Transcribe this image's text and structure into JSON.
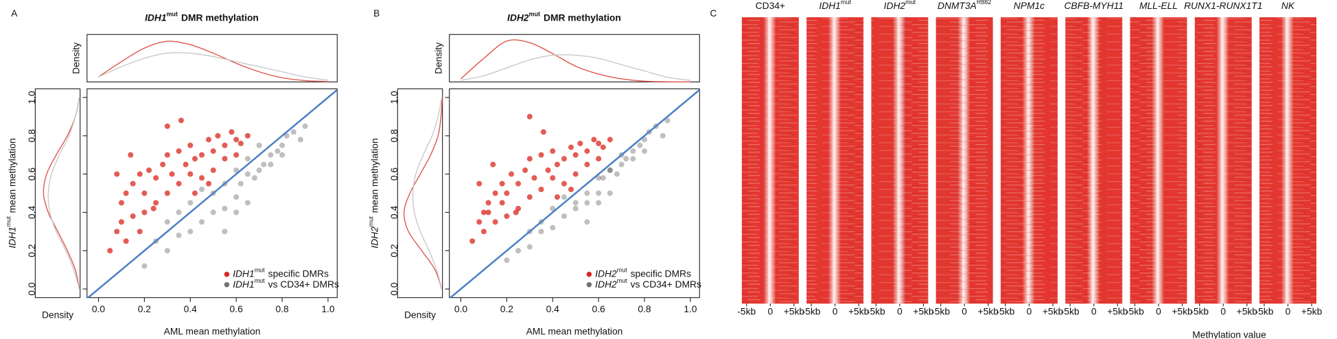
{
  "chart_data": [
    {
      "type": "scatter",
      "panel": "A",
      "title": {
        "italic": "IDH1",
        "sup": "mut",
        "text": "DMR methylation"
      },
      "xlabel": "AML mean methylation",
      "ylabel": {
        "italic": "IDH1",
        "sup": "mut",
        "text": "mean methylation"
      },
      "density_label": "Density",
      "xlim": [
        -0.05,
        1.04
      ],
      "ylim": [
        -0.045,
        1.045
      ],
      "xticks": [
        {
          "value": 0,
          "label": "0.0"
        },
        0.2,
        0.4,
        0.6,
        0.8,
        {
          "value": 1,
          "label": "1.0"
        }
      ],
      "yticks": [
        {
          "value": 0,
          "label": "0.0"
        },
        0.2,
        0.4,
        0.6,
        0.8,
        {
          "value": 1,
          "label": "1.0"
        }
      ],
      "diagonal_color": "#4a80c4",
      "legend": "bottom-right",
      "series": [
        {
          "name": {
            "italic": "IDH1",
            "sup": "mut",
            "text": "specific DMRs"
          },
          "color": "#d9261c",
          "opacity": 0.75,
          "x": [
            0.08,
            0.1,
            0.12,
            0.15,
            0.18,
            0.2,
            0.22,
            0.25,
            0.28,
            0.3,
            0.32,
            0.35,
            0.38,
            0.4,
            0.42,
            0.45,
            0.48,
            0.5,
            0.52,
            0.55,
            0.58,
            0.6,
            0.62,
            0.65,
            0.1,
            0.15,
            0.2,
            0.25,
            0.3,
            0.35,
            0.4,
            0.45,
            0.5,
            0.55,
            0.6,
            0.12,
            0.18,
            0.24,
            0.3,
            0.36,
            0.42,
            0.48,
            0.05,
            0.08,
            0.14
          ],
          "values": [
            0.3,
            0.45,
            0.5,
            0.55,
            0.6,
            0.5,
            0.62,
            0.58,
            0.65,
            0.7,
            0.6,
            0.72,
            0.65,
            0.75,
            0.68,
            0.7,
            0.78,
            0.72,
            0.8,
            0.75,
            0.82,
            0.78,
            0.76,
            0.8,
            0.35,
            0.38,
            0.4,
            0.45,
            0.5,
            0.55,
            0.6,
            0.58,
            0.62,
            0.68,
            0.7,
            0.25,
            0.3,
            0.42,
            0.85,
            0.88,
            0.5,
            0.55,
            0.2,
            0.6,
            0.7
          ]
        },
        {
          "name": {
            "italic": "IDH1",
            "sup": "mut",
            "text": "vs CD34+ DMRs"
          },
          "color": "#000000",
          "opacity": 0.25,
          "x": [
            0.2,
            0.3,
            0.35,
            0.4,
            0.45,
            0.5,
            0.55,
            0.6,
            0.62,
            0.65,
            0.68,
            0.7,
            0.72,
            0.75,
            0.78,
            0.8,
            0.82,
            0.85,
            0.88,
            0.9,
            0.5,
            0.55,
            0.6,
            0.65,
            0.7,
            0.75,
            0.8,
            0.3,
            0.35,
            0.4,
            0.45,
            0.25,
            0.55,
            0.6,
            0.65
          ],
          "values": [
            0.12,
            0.2,
            0.28,
            0.3,
            0.35,
            0.4,
            0.42,
            0.48,
            0.55,
            0.6,
            0.58,
            0.62,
            0.65,
            0.7,
            0.72,
            0.75,
            0.8,
            0.82,
            0.78,
            0.85,
            0.5,
            0.55,
            0.62,
            0.68,
            0.75,
            0.65,
            0.7,
            0.35,
            0.4,
            0.45,
            0.52,
            0.25,
            0.3,
            0.4,
            0.45
          ]
        }
      ],
      "density_x": {
        "grid": [
          0,
          0.1,
          0.2,
          0.3,
          0.4,
          0.5,
          0.6,
          0.7,
          0.8,
          0.9,
          1.0
        ],
        "lim": [
          0,
          2.6
        ],
        "series": [
          {
            "color": "#e0534a",
            "values": [
              0.3,
              1.2,
              2.0,
              2.4,
              2.2,
              1.7,
              1.1,
              0.6,
              0.25,
              0.08,
              0.02
            ]
          },
          {
            "color": "#c8c8c8",
            "values": [
              0.3,
              0.9,
              1.4,
              1.7,
              1.7,
              1.5,
              1.2,
              0.9,
              0.6,
              0.3,
              0.1
            ]
          }
        ]
      },
      "density_y": {
        "grid": [
          0,
          0.1,
          0.2,
          0.3,
          0.4,
          0.5,
          0.6,
          0.7,
          0.8,
          0.9,
          1.0
        ],
        "lim": [
          0,
          2.6
        ],
        "series": [
          {
            "color": "#e0534a",
            "values": [
              0.05,
              0.3,
              0.8,
              1.4,
              2.0,
              2.3,
              2.1,
              1.5,
              0.8,
              0.3,
              0.05
            ]
          },
          {
            "color": "#c8c8c8",
            "values": [
              0.05,
              0.4,
              0.9,
              1.5,
              1.9,
              2.0,
              1.8,
              1.3,
              0.7,
              0.3,
              0.05
            ]
          }
        ]
      }
    },
    {
      "type": "scatter",
      "panel": "B",
      "title": {
        "italic": "IDH2",
        "sup": "mut",
        "text": "DMR methylation"
      },
      "xlabel": "AML mean methylation",
      "ylabel": {
        "italic": "IDH2",
        "sup": "mut",
        "text": "mean methylation"
      },
      "density_label": "Density",
      "xlim": [
        -0.05,
        1.04
      ],
      "ylim": [
        -0.045,
        1.045
      ],
      "xticks": [
        {
          "value": 0,
          "label": "0.0"
        },
        0.2,
        0.4,
        0.6,
        0.8,
        {
          "value": 1,
          "label": "1.0"
        }
      ],
      "yticks": [
        {
          "value": 0,
          "label": "0.0"
        },
        0.2,
        0.4,
        0.6,
        0.8,
        {
          "value": 1,
          "label": "1.0"
        }
      ],
      "diagonal_color": "#4a80c4",
      "legend": "bottom-right",
      "series": [
        {
          "name": {
            "italic": "IDH2",
            "sup": "mut",
            "text": "specific DMRs"
          },
          "color": "#d9261c",
          "opacity": 0.75,
          "x": [
            0.08,
            0.1,
            0.12,
            0.15,
            0.18,
            0.2,
            0.22,
            0.25,
            0.28,
            0.3,
            0.32,
            0.35,
            0.38,
            0.4,
            0.42,
            0.45,
            0.48,
            0.5,
            0.52,
            0.55,
            0.58,
            0.6,
            0.62,
            0.65,
            0.1,
            0.15,
            0.2,
            0.25,
            0.3,
            0.35,
            0.4,
            0.45,
            0.5,
            0.55,
            0.6,
            0.12,
            0.18,
            0.24,
            0.3,
            0.36,
            0.42,
            0.48,
            0.05,
            0.08,
            0.14
          ],
          "values": [
            0.35,
            0.4,
            0.45,
            0.5,
            0.55,
            0.5,
            0.6,
            0.55,
            0.62,
            0.68,
            0.58,
            0.7,
            0.62,
            0.72,
            0.65,
            0.68,
            0.74,
            0.7,
            0.76,
            0.72,
            0.78,
            0.76,
            0.74,
            0.78,
            0.3,
            0.35,
            0.38,
            0.42,
            0.48,
            0.52,
            0.58,
            0.55,
            0.6,
            0.65,
            0.68,
            0.4,
            0.45,
            0.4,
            0.9,
            0.82,
            0.48,
            0.52,
            0.25,
            0.55,
            0.65
          ]
        },
        {
          "name": {
            "italic": "IDH2",
            "sup": "mut",
            "text": "vs CD34+ DMRs"
          },
          "color": "#000000",
          "opacity": 0.25,
          "x": [
            0.2,
            0.3,
            0.35,
            0.4,
            0.45,
            0.5,
            0.55,
            0.6,
            0.62,
            0.65,
            0.68,
            0.7,
            0.72,
            0.75,
            0.78,
            0.8,
            0.82,
            0.85,
            0.88,
            0.9,
            0.5,
            0.55,
            0.6,
            0.65,
            0.7,
            0.75,
            0.8,
            0.3,
            0.35,
            0.4,
            0.45,
            0.25,
            0.55,
            0.6,
            0.65
          ],
          "values": [
            0.15,
            0.22,
            0.3,
            0.32,
            0.38,
            0.42,
            0.45,
            0.5,
            0.58,
            0.62,
            0.6,
            0.65,
            0.68,
            0.72,
            0.75,
            0.78,
            0.82,
            0.85,
            0.8,
            0.88,
            0.45,
            0.5,
            0.58,
            0.62,
            0.7,
            0.68,
            0.72,
            0.3,
            0.35,
            0.42,
            0.48,
            0.2,
            0.35,
            0.45,
            0.5
          ]
        }
      ],
      "density_x": {
        "grid": [
          0,
          0.1,
          0.2,
          0.3,
          0.4,
          0.5,
          0.6,
          0.7,
          0.8,
          0.9,
          1.0
        ],
        "lim": [
          0,
          2.8
        ],
        "series": [
          {
            "color": "#e0534a",
            "values": [
              0.2,
              1.5,
              2.6,
              2.5,
              1.8,
              1.0,
              0.5,
              0.2,
              0.05,
              0.01,
              0
            ]
          },
          {
            "color": "#c8c8c8",
            "values": [
              0.1,
              0.4,
              0.9,
              1.4,
              1.7,
              1.7,
              1.5,
              1.1,
              0.7,
              0.3,
              0.1
            ]
          }
        ]
      },
      "density_y": {
        "grid": [
          0,
          0.1,
          0.2,
          0.3,
          0.4,
          0.5,
          0.6,
          0.7,
          0.8,
          0.9,
          1.0
        ],
        "lim": [
          0,
          2.8
        ],
        "series": [
          {
            "color": "#e0534a",
            "values": [
              0.05,
              0.5,
              1.4,
              2.3,
              2.6,
              2.2,
              1.5,
              0.8,
              0.3,
              0.1,
              0.02
            ]
          },
          {
            "color": "#c8c8c8",
            "values": [
              0.05,
              0.4,
              0.9,
              1.5,
              1.9,
              2.0,
              1.8,
              1.3,
              0.7,
              0.3,
              0.05
            ]
          }
        ]
      }
    },
    {
      "type": "heatmap",
      "panel": "C",
      "columns": [
        {
          "text": "CD34+"
        },
        {
          "text": "IDH1",
          "sup": "mut",
          "italic": true
        },
        {
          "text": "IDH2",
          "sup": "mut",
          "italic": true
        },
        {
          "text": "DNMT3A",
          "sup": "R882",
          "italic": true
        },
        {
          "text": "NPM1c",
          "italic": true
        },
        {
          "text": "CBFB-MYH11",
          "italic": true
        },
        {
          "text": "MLL-ELL",
          "italic": true
        },
        {
          "text": "RUNX1-RUNX1T1",
          "italic": true
        },
        {
          "text": "NK",
          "italic": true
        }
      ],
      "xlim": [
        -6,
        6
      ],
      "xticks": [
        {
          "value": -5,
          "label": "-5kb"
        },
        0,
        {
          "value": 5,
          "label": "+5kb"
        }
      ],
      "legend_title": "Methylation value",
      "color": "#e2362f"
    }
  ]
}
